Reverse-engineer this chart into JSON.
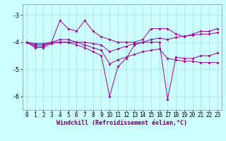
{
  "x": [
    0,
    1,
    2,
    3,
    4,
    5,
    6,
    7,
    8,
    9,
    10,
    11,
    12,
    13,
    14,
    15,
    16,
    17,
    18,
    19,
    20,
    21,
    22,
    23
  ],
  "line1_y": [
    -4.0,
    -4.1,
    -4.1,
    -4.0,
    -3.2,
    -3.5,
    -3.6,
    -3.2,
    -3.6,
    -3.8,
    -3.9,
    -4.0,
    -4.0,
    -4.0,
    -3.9,
    -3.5,
    -3.5,
    -3.5,
    -3.7,
    -3.8,
    -3.7,
    -3.6,
    -3.6,
    -3.5
  ],
  "line2_y": [
    -4.0,
    -4.2,
    -4.2,
    -4.05,
    -4.0,
    -4.0,
    -4.1,
    -4.2,
    -4.35,
    -4.5,
    -6.0,
    -4.9,
    -4.6,
    -4.1,
    -4.0,
    -4.0,
    -4.0,
    -6.1,
    -4.55,
    -4.6,
    -4.6,
    -4.5,
    -4.5,
    -4.4
  ],
  "line3_y": [
    -4.0,
    -4.15,
    -4.15,
    -4.0,
    -3.9,
    -3.9,
    -4.0,
    -4.1,
    -4.2,
    -4.3,
    -4.8,
    -4.65,
    -4.55,
    -4.45,
    -4.35,
    -4.3,
    -4.25,
    -4.6,
    -4.65,
    -4.7,
    -4.7,
    -4.75,
    -4.75,
    -4.75
  ],
  "line4_y": [
    -4.0,
    -4.05,
    -4.05,
    -4.0,
    -4.0,
    -4.0,
    -4.0,
    -4.0,
    -4.05,
    -4.1,
    -4.35,
    -4.25,
    -4.15,
    -4.05,
    -4.0,
    -3.9,
    -3.85,
    -3.9,
    -3.82,
    -3.78,
    -3.75,
    -3.7,
    -3.7,
    -3.65
  ],
  "xlabel": "Windchill (Refroidissement éolien,°C)",
  "xlim": [
    -0.5,
    23.5
  ],
  "ylim": [
    -6.5,
    -2.6
  ],
  "yticks": [
    -6,
    -5,
    -4,
    -3
  ],
  "xticks": [
    0,
    1,
    2,
    3,
    4,
    5,
    6,
    7,
    8,
    9,
    10,
    11,
    12,
    13,
    14,
    15,
    16,
    17,
    18,
    19,
    20,
    21,
    22,
    23
  ],
  "bg_color": "#ccffff",
  "grid_color": "#aadddd",
  "line_color": "#990099",
  "xlabel_fontsize": 6,
  "tick_fontsize": 5.5
}
